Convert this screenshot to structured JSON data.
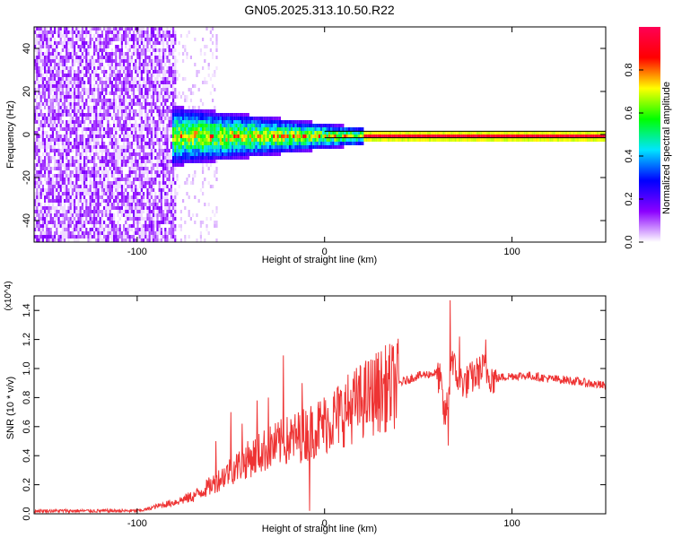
{
  "title": "GN05.2025.313.10.50.R22",
  "colors": {
    "snr_line": "#ee3333",
    "background": "#ffffff",
    "axis": "#000000"
  },
  "chart_data": [
    {
      "type": "heatmap",
      "panel": "top",
      "xlabel": "Height of straight line (km)",
      "ylabel": "Frequency (Hz)",
      "xlim": [
        -155,
        150
      ],
      "ylim": [
        -50,
        50
      ],
      "x_ticks": [
        -100,
        0,
        100
      ],
      "x_tick_labels": [
        "-100",
        "0",
        "100"
      ],
      "y_ticks": [
        -40,
        -20,
        0,
        20,
        40
      ],
      "y_tick_labels": [
        "-40",
        "-20",
        "0",
        "20",
        "40"
      ],
      "colorbar": {
        "label": "Normalized spectral amplitude",
        "range": [
          0,
          1
        ],
        "ticks": [
          0.0,
          0.2,
          0.4,
          0.6,
          0.8
        ],
        "tick_labels": [
          "0.0",
          "0.2",
          "0.4",
          "0.6",
          "0.8"
        ],
        "colormap": [
          "#ffffff",
          "#8b00ff",
          "#0000ff",
          "#00e5ff",
          "#00ff00",
          "#ffff00",
          "#ff0000",
          "#ff0055"
        ]
      },
      "regions": [
        {
          "x_range": [
            -155,
            -80
          ],
          "description": "broadband noise",
          "amplitude": [
            0.05,
            0.15
          ]
        },
        {
          "x_range": [
            -80,
            -60
          ],
          "description": "sparse noise",
          "amplitude": [
            0.0,
            0.05
          ]
        },
        {
          "x_range": [
            -82,
            20
          ],
          "description": "spreading signal near 0 Hz",
          "amplitude": [
            0.2,
            0.9
          ]
        },
        {
          "x_range": [
            20,
            150
          ],
          "description": "narrow tone near 0 Hz",
          "amplitude": [
            0.6,
            0.95
          ]
        }
      ],
      "tone_line_y": [
        1.5,
        -1.5
      ]
    },
    {
      "type": "line",
      "panel": "bottom",
      "xlabel": "Height of straight line (km)",
      "ylabel": "SNR (10 * v/v)",
      "y_multiplier": "(x10^4)",
      "xlim": [
        -155,
        150
      ],
      "ylim": [
        0,
        1.5
      ],
      "x_ticks": [
        -100,
        0,
        100
      ],
      "x_tick_labels": [
        "-100",
        "0",
        "100"
      ],
      "y_ticks": [
        0.0,
        0.2,
        0.4,
        0.6,
        0.8,
        1.0,
        1.2,
        1.4
      ],
      "y_tick_labels": [
        "0.0",
        "0.2",
        "0.4",
        "0.6",
        "0.8",
        "1.0",
        "1.2",
        "1.4"
      ],
      "series": [
        {
          "name": "SNR",
          "x": [
            -155,
            -140,
            -120,
            -100,
            -95,
            -90,
            -80,
            -70,
            -60,
            -50,
            -40,
            -30,
            -20,
            -10,
            0,
            10,
            20,
            30,
            40,
            50,
            60,
            62,
            64,
            66,
            68,
            70,
            75,
            80,
            85,
            90,
            100,
            110,
            120,
            130,
            140,
            150
          ],
          "y": [
            0.02,
            0.02,
            0.02,
            0.02,
            0.03,
            0.05,
            0.08,
            0.12,
            0.2,
            0.3,
            0.38,
            0.45,
            0.5,
            0.55,
            0.62,
            0.7,
            0.78,
            0.85,
            0.9,
            0.95,
            0.97,
            0.9,
            0.65,
            0.8,
            1.1,
            0.95,
            0.9,
            0.95,
            1.0,
            0.93,
            0.95,
            0.95,
            0.93,
            0.92,
            0.9,
            0.88
          ],
          "spikes": [
            {
              "x": -58,
              "y": 0.5
            },
            {
              "x": -50,
              "y": 0.7
            },
            {
              "x": -44,
              "y": 0.62
            },
            {
              "x": -36,
              "y": 0.78
            },
            {
              "x": -30,
              "y": 0.8
            },
            {
              "x": -22,
              "y": 1.09
            },
            {
              "x": -12,
              "y": 0.9
            },
            {
              "x": -8,
              "y": 0.02
            },
            {
              "x": 66,
              "y": 0.47
            },
            {
              "x": 67,
              "y": 1.47
            },
            {
              "x": 72,
              "y": 1.22
            },
            {
              "x": 86,
              "y": 1.2
            }
          ]
        }
      ]
    }
  ]
}
